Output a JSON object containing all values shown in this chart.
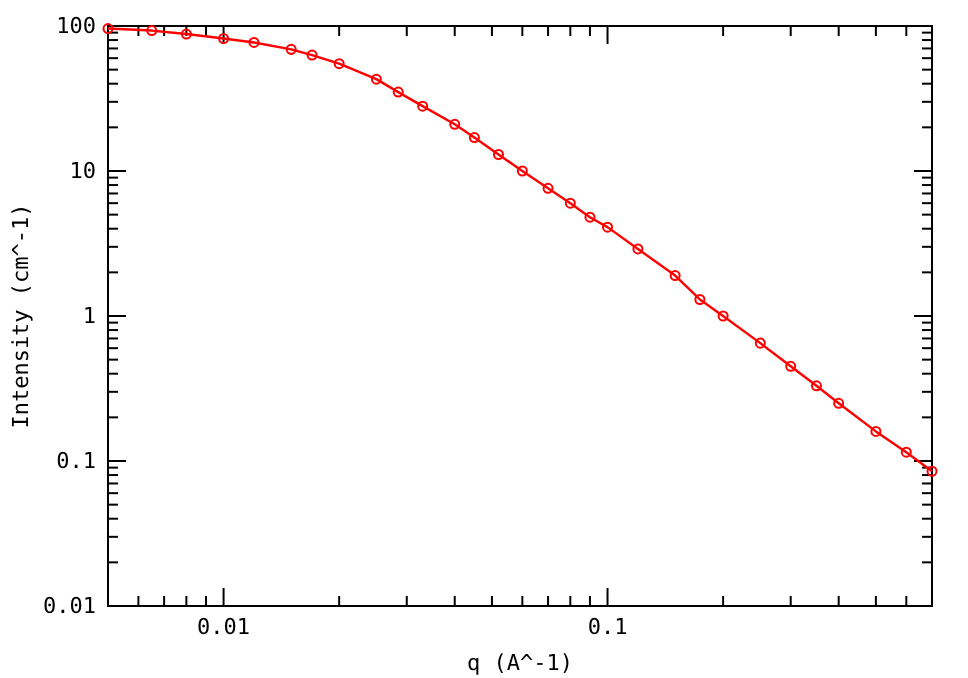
{
  "chart_data": {
    "type": "line",
    "xlabel": "q (A^-1)",
    "ylabel": "Intensity (cm^-1)",
    "log": "xy",
    "xlim": [
      0.005,
      0.7
    ],
    "ylim": [
      0.01,
      100
    ],
    "xticks": [
      {
        "value": 0.006,
        "label": null
      },
      {
        "value": 0.007,
        "label": null
      },
      {
        "value": 0.008,
        "label": null
      },
      {
        "value": 0.009,
        "label": null
      },
      0.01,
      {
        "value": 0.02,
        "label": null
      },
      {
        "value": 0.03,
        "label": null
      },
      {
        "value": 0.04,
        "label": null
      },
      {
        "value": 0.05,
        "label": null
      },
      {
        "value": 0.06,
        "label": null
      },
      {
        "value": 0.07,
        "label": null
      },
      {
        "value": 0.08,
        "label": null
      },
      {
        "value": 0.09,
        "label": null
      },
      0.1,
      {
        "value": 0.2,
        "label": null
      },
      {
        "value": 0.3,
        "label": null
      },
      {
        "value": 0.4,
        "label": null
      },
      {
        "value": 0.5,
        "label": null
      },
      {
        "value": 0.6,
        "label": null
      },
      {
        "value": 0.7,
        "label": null
      }
    ],
    "yticks": [
      0.01,
      {
        "value": 0.02,
        "label": null
      },
      {
        "value": 0.03,
        "label": null
      },
      {
        "value": 0.04,
        "label": null
      },
      {
        "value": 0.05,
        "label": null
      },
      {
        "value": 0.06,
        "label": null
      },
      {
        "value": 0.07,
        "label": null
      },
      {
        "value": 0.08,
        "label": null
      },
      {
        "value": 0.09,
        "label": null
      },
      0.1,
      {
        "value": 0.2,
        "label": null
      },
      {
        "value": 0.3,
        "label": null
      },
      {
        "value": 0.4,
        "label": null
      },
      {
        "value": 0.5,
        "label": null
      },
      {
        "value": 0.6,
        "label": null
      },
      {
        "value": 0.7,
        "label": null
      },
      {
        "value": 0.8,
        "label": null
      },
      {
        "value": 0.9,
        "label": null
      },
      1,
      {
        "value": 2,
        "label": null
      },
      {
        "value": 3,
        "label": null
      },
      {
        "value": 4,
        "label": null
      },
      {
        "value": 5,
        "label": null
      },
      {
        "value": 6,
        "label": null
      },
      {
        "value": 7,
        "label": null
      },
      {
        "value": 8,
        "label": null
      },
      {
        "value": 9,
        "label": null
      },
      10,
      {
        "value": 20,
        "label": null
      },
      {
        "value": 30,
        "label": null
      },
      {
        "value": 40,
        "label": null
      },
      {
        "value": 50,
        "label": null
      },
      {
        "value": 60,
        "label": null
      },
      {
        "value": 70,
        "label": null
      },
      {
        "value": 80,
        "label": null
      },
      {
        "value": 90,
        "label": null
      },
      100
    ],
    "marker": "circle",
    "line_style": "solid",
    "x": [
      0.005,
      0.0065,
      0.008,
      0.01,
      0.012,
      0.015,
      0.017,
      0.02,
      0.025,
      0.0285,
      0.033,
      0.04,
      0.045,
      0.052,
      0.06,
      0.07,
      0.08,
      0.09,
      0.1,
      0.12,
      0.15,
      0.174,
      0.2,
      0.25,
      0.3,
      0.35,
      0.4,
      0.5,
      0.6,
      0.7
    ],
    "series": [
      {
        "color": "#ff0000",
        "values": [
          96,
          93,
          88,
          82,
          77,
          69,
          63,
          55,
          43,
          35,
          28,
          21,
          17,
          13,
          10,
          7.6,
          6.0,
          4.8,
          4.1,
          2.9,
          1.9,
          1.3,
          1.0,
          0.65,
          0.45,
          0.33,
          0.25,
          0.16,
          0.115,
          0.085
        ]
      }
    ]
  }
}
